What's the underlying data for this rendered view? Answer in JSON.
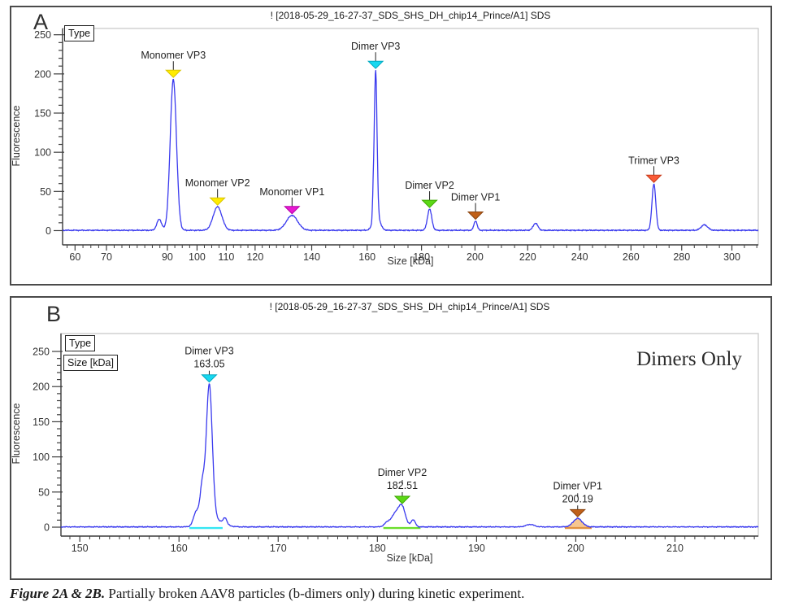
{
  "caption": {
    "prefix": "Figure 2A & 2B.",
    "text": " Partially broken AAV8 particles (b-dimers only) during kinetic experiment."
  },
  "panels": [
    {
      "label": "A",
      "title": "! [2018-05-29_16-27-37_SDS_SHS_DH_chip14_Prince/A1] SDS",
      "legend_items": [
        "Type"
      ],
      "annotation": "",
      "chart_data": {
        "type": "line",
        "title": "! [2018-05-29_16-27-37_SDS_SHS_DH_chip14_Prince/A1] SDS",
        "xlabel": "Size [kDa]",
        "ylabel": "Fluorescence",
        "x_scale": "power",
        "x_exponent": 0.85,
        "xlim": [
          56.1,
          310.6
        ],
        "ylim": [
          -18.2,
          258
        ],
        "x_major_ticks": [
          60,
          70,
          90,
          100,
          110,
          120,
          140,
          160,
          180,
          200,
          220,
          240,
          260,
          280,
          300
        ],
        "x_minor_step_below_140": 2.5,
        "x_minor_step": 5,
        "y_major_ticks": [
          0,
          50,
          100,
          150,
          200,
          250
        ],
        "y_minor_step": 10,
        "y_max_tick": 250,
        "grid": false,
        "legend_position": "top-left",
        "trace_color": "#3a3aee",
        "noise_freq": 1.0,
        "noise_amp": 0.5,
        "peaks": [
          {
            "x": 87.3,
            "height": 14,
            "sigma": 0.8
          },
          {
            "name": "Monomer VP3",
            "x": 92,
            "height": 193,
            "sigma": 1.05,
            "marker_color": "#ffec00",
            "marker_edge": "#d8c400"
          },
          {
            "name": "Monomer VP2",
            "x": 107,
            "height": 30,
            "sigma": 1.5,
            "marker_color": "#ffec00",
            "marker_edge": "#d8c400"
          },
          {
            "name": "Monomer VP1",
            "x": 133,
            "height": 19,
            "sigma": 2.0,
            "marker_color": "#e81ad2",
            "marker_edge": "#b400a8"
          },
          {
            "x": 162.2,
            "height": 20,
            "sigma": 0.25
          },
          {
            "name": "Dimer VP3",
            "x": 163.1,
            "height": 185,
            "sigma": 0.5,
            "marker_color": "#18d8f0",
            "marker_edge": "#00a8c0"
          },
          {
            "x": 163.4,
            "height": 20,
            "sigma": 1.2
          },
          {
            "name": "Dimer VP2",
            "x": 183,
            "height": 27,
            "sigma": 0.8,
            "marker_color": "#5cd816",
            "marker_edge": "#3da800"
          },
          {
            "name": "Dimer VP1",
            "x": 200.2,
            "height": 12,
            "sigma": 0.6,
            "marker_color": "#c06018",
            "marker_edge": "#8a4410"
          },
          {
            "x": 223,
            "height": 9,
            "sigma": 0.9
          },
          {
            "name": "Trimer VP3",
            "x": 269,
            "height": 59,
            "sigma": 0.75,
            "marker_color": "#f95c38",
            "marker_edge": "#c83a18"
          },
          {
            "x": 289,
            "height": 7,
            "sigma": 1.3
          }
        ]
      }
    },
    {
      "label": "B",
      "title": "! [2018-05-29_16-27-37_SDS_SHS_DH_chip14_Prince/A1] SDS",
      "legend_items": [
        "Type",
        "Size [kDa]"
      ],
      "annotation": "Dimers Only",
      "chart_data": {
        "type": "line",
        "title": "! [2018-05-29_16-27-37_SDS_SHS_DH_chip14_Prince/A1] SDS",
        "xlabel": "Size [kDa]",
        "ylabel": "Fluorescence",
        "x_scale": "linear",
        "xlim": [
          148.1,
          218.4
        ],
        "ylim": [
          -12.7,
          275.5
        ],
        "x_major_ticks": [
          150,
          160,
          170,
          180,
          190,
          200,
          210
        ],
        "x_minor_step": 1,
        "y_major_ticks": [
          0,
          50,
          100,
          150,
          200,
          250
        ],
        "y_minor_step": 10,
        "y_max_tick": 250,
        "grid": false,
        "legend_position": "top-left",
        "trace_color": "#3a3aee",
        "noise_freq": 3.0,
        "noise_amp": 0.5,
        "peaks": [
          {
            "x": 161.75,
            "height": 20,
            "sigma": 0.28
          },
          {
            "x": 162.35,
            "height": 50,
            "sigma": 0.22
          },
          {
            "name": "Dimer VP3",
            "size_label": "163.05",
            "x": 163.05,
            "height": 192,
            "sigma": 0.3,
            "marker_color": "#18d8f0",
            "marker_edge": "#00a8c0",
            "region": [
              161.05,
              164.4
            ],
            "region_color": "#35e6f2"
          },
          {
            "x": 163.35,
            "height": 12,
            "sigma": 0.9
          },
          {
            "x": 164.65,
            "height": 9,
            "sigma": 0.18
          },
          {
            "x": 181.0,
            "height": 6,
            "sigma": 0.3
          },
          {
            "x": 181.85,
            "height": 19,
            "sigma": 0.4
          },
          {
            "name": "Dimer VP2",
            "size_label": "182.51",
            "x": 182.51,
            "height": 26,
            "sigma": 0.33,
            "marker_color": "#5cd816",
            "marker_edge": "#3da800",
            "region": [
              180.6,
              184.35
            ],
            "region_color": "#6ade2c"
          },
          {
            "x": 183.6,
            "height": 10,
            "sigma": 0.22
          },
          {
            "x": 195.4,
            "height": 3.5,
            "sigma": 0.4
          },
          {
            "name": "Dimer VP1",
            "size_label": "200.19",
            "x": 200.19,
            "height": 12,
            "sigma": 0.45,
            "marker_color": "#c06018",
            "marker_edge": "#8a4410",
            "region": [
              198.9,
              201.6
            ],
            "region_color": "#e09040",
            "region_fill": true,
            "region_fill_color": "#f6c690"
          }
        ]
      }
    }
  ]
}
